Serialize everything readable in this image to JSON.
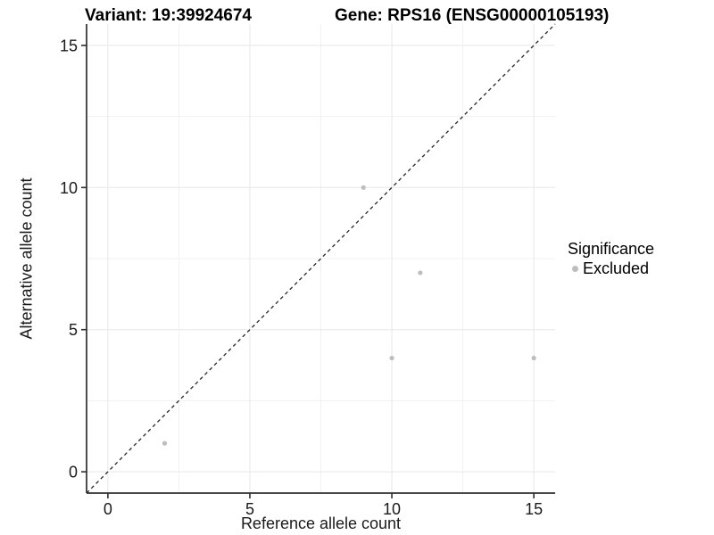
{
  "chart_data": {
    "type": "scatter",
    "titles": [
      "Variant: 19:39924674",
      "Gene: RPS16 (ENSG00000105193)"
    ],
    "xlabel": "Reference allele count",
    "ylabel": "Alternative allele count",
    "xlim": [
      -0.75,
      15.75
    ],
    "ylim": [
      -0.75,
      15.75
    ],
    "x_ticks": [
      0,
      5,
      10,
      15
    ],
    "y_ticks": [
      0,
      5,
      10,
      15
    ],
    "x_minor_ticks": [
      2.5,
      7.5,
      12.5
    ],
    "y_minor_ticks": [
      2.5,
      7.5,
      12.5
    ],
    "grid": true,
    "series": [
      {
        "name": "Excluded",
        "color": "#bdbdbd",
        "points": [
          [
            2,
            1
          ],
          [
            9,
            10
          ],
          [
            10,
            4
          ],
          [
            11,
            7
          ],
          [
            15,
            4
          ]
        ]
      }
    ],
    "reference_line": {
      "type": "identity",
      "style": "dashed",
      "color": "#262626"
    },
    "legend": {
      "position": "right",
      "title": "Significance",
      "items": [
        {
          "label": "Excluded",
          "color": "#bdbdbd"
        }
      ]
    },
    "colors": {
      "grid_major": "#e7e7e7",
      "grid_minor": "#f1f1f1",
      "axis_line": "#2e2e2e",
      "tick_text": "#1a1a1a",
      "background": "#ffffff"
    }
  }
}
